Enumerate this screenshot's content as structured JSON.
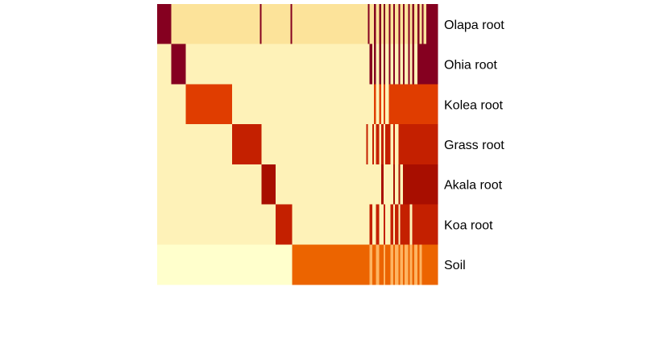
{
  "chart_data": {
    "type": "heatmap",
    "title": "",
    "xlabel": "",
    "ylabel": "",
    "rows": [
      "Olapa root",
      "Ohia root",
      "Kolea root",
      "Grass root",
      "Akala root",
      "Koa root",
      "Soil"
    ],
    "palette": [
      "#FFFFCC",
      "#FEF2B8",
      "#FCE39A",
      "#FDB462",
      "#F07A2B",
      "#EC6400",
      "#E03D00",
      "#C42000",
      "#A80E00",
      "#850020"
    ],
    "segments": [
      {
        "width": 16,
        "values": [
          9,
          1,
          1,
          1,
          1,
          1,
          0
        ]
      },
      {
        "width": 17,
        "values": [
          2,
          9,
          1,
          1,
          1,
          1,
          0
        ]
      },
      {
        "width": 53,
        "values": [
          2,
          1,
          6,
          1,
          1,
          1,
          0
        ]
      },
      {
        "width": 32,
        "values": [
          2,
          1,
          1,
          7,
          1,
          1,
          0
        ]
      },
      {
        "width": 2,
        "values": [
          9,
          1,
          1,
          7,
          1,
          1,
          0
        ]
      },
      {
        "width": 16,
        "values": [
          2,
          1,
          1,
          1,
          8,
          1,
          0
        ]
      },
      {
        "width": 17,
        "values": [
          2,
          1,
          1,
          1,
          1,
          7,
          0
        ]
      },
      {
        "width": 2,
        "values": [
          9,
          1,
          1,
          1,
          1,
          7,
          0
        ]
      },
      {
        "width": 85,
        "values": [
          2,
          1,
          1,
          1,
          1,
          1,
          5
        ]
      },
      {
        "width": 2,
        "values": [
          2,
          1,
          1,
          7,
          1,
          1,
          5
        ]
      },
      {
        "width": 2,
        "values": [
          9,
          1,
          1,
          1,
          1,
          1,
          5
        ]
      },
      {
        "width": 3,
        "values": [
          2,
          9,
          1,
          1,
          1,
          7,
          3
        ]
      },
      {
        "width": 2,
        "values": [
          2,
          1,
          1,
          7,
          1,
          1,
          5
        ]
      },
      {
        "width": 2,
        "values": [
          9,
          9,
          6,
          1,
          1,
          1,
          5
        ]
      },
      {
        "width": 4,
        "values": [
          2,
          1,
          1,
          7,
          1,
          7,
          3
        ]
      },
      {
        "width": 2,
        "values": [
          9,
          9,
          6,
          1,
          1,
          1,
          5
        ]
      },
      {
        "width": 3,
        "values": [
          2,
          1,
          1,
          7,
          8,
          1,
          5
        ]
      },
      {
        "width": 2,
        "values": [
          9,
          9,
          6,
          1,
          1,
          7,
          3
        ]
      },
      {
        "width": 4,
        "values": [
          2,
          1,
          1,
          7,
          1,
          1,
          5
        ]
      },
      {
        "width": 2,
        "values": [
          9,
          9,
          6,
          7,
          1,
          1,
          5
        ]
      },
      {
        "width": 3,
        "values": [
          2,
          1,
          6,
          1,
          1,
          7,
          3
        ]
      },
      {
        "width": 2,
        "values": [
          9,
          9,
          6,
          7,
          8,
          1,
          5
        ]
      },
      {
        "width": 4,
        "values": [
          2,
          1,
          6,
          1,
          1,
          7,
          3
        ]
      },
      {
        "width": 2,
        "values": [
          9,
          9,
          6,
          7,
          8,
          1,
          5
        ]
      },
      {
        "width": 3,
        "values": [
          2,
          1,
          6,
          7,
          1,
          7,
          3
        ]
      },
      {
        "width": 2,
        "values": [
          9,
          9,
          6,
          7,
          8,
          7,
          5
        ]
      },
      {
        "width": 4,
        "values": [
          2,
          1,
          6,
          7,
          8,
          7,
          3
        ]
      },
      {
        "width": 2,
        "values": [
          9,
          9,
          6,
          7,
          8,
          7,
          5
        ]
      },
      {
        "width": 3,
        "values": [
          2,
          1,
          6,
          7,
          8,
          1,
          3
        ]
      },
      {
        "width": 2,
        "values": [
          9,
          9,
          6,
          7,
          8,
          7,
          5
        ]
      },
      {
        "width": 4,
        "values": [
          2,
          1,
          6,
          7,
          8,
          7,
          3
        ]
      },
      {
        "width": 2,
        "values": [
          9,
          9,
          6,
          7,
          8,
          7,
          5
        ]
      },
      {
        "width": 3,
        "values": [
          2,
          9,
          6,
          7,
          8,
          7,
          3
        ]
      },
      {
        "width": 2,
        "values": [
          9,
          9,
          6,
          7,
          8,
          7,
          5
        ]
      },
      {
        "width": 3,
        "values": [
          2,
          9,
          6,
          7,
          8,
          7,
          5
        ]
      },
      {
        "width": 13,
        "values": [
          9,
          9,
          6,
          7,
          8,
          7,
          5
        ]
      }
    ]
  }
}
